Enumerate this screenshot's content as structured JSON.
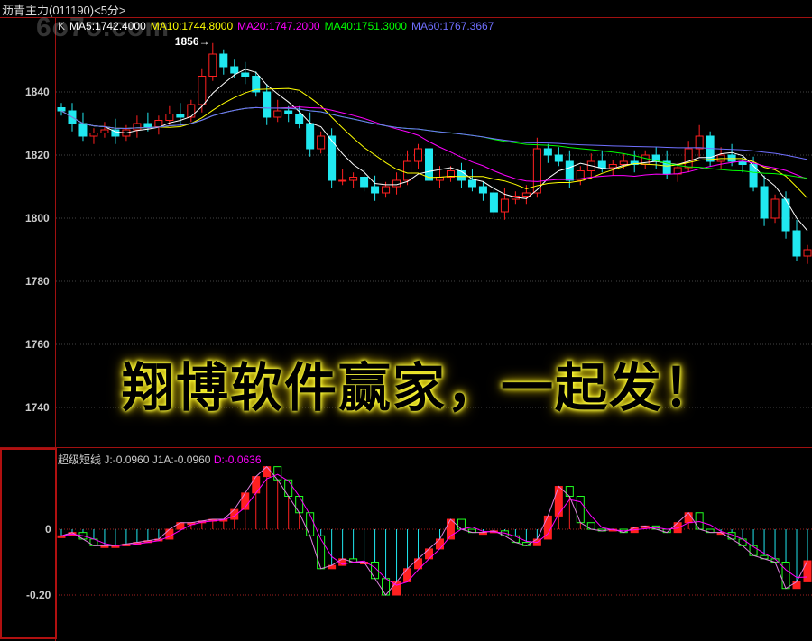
{
  "header": {
    "title": "沥青主力(011190)<5分>"
  },
  "logo_text": "6o7o.com",
  "legend": {
    "k": "K",
    "ma5": "MA5:1742.4000",
    "ma10": "MA10:1744.8000",
    "ma20": "MA20:1747.2000",
    "ma40": "MA40:1751.3000",
    "ma60": "MA60:1767.3667"
  },
  "high_marker": "1856→",
  "slogan": "翔博软件赢家，一起发！",
  "sub_legend": {
    "name": "超级短线",
    "j": "J:-0.0960",
    "j1a": "J1A:-0.0960",
    "d": "D:-0.0636"
  },
  "colors": {
    "up": "#ff2020",
    "down": "#20e8f0",
    "ma5": "#ffffff",
    "ma10": "#ffff00",
    "ma20": "#ff00ff",
    "ma40": "#00ff00",
    "ma60": "#7070ff",
    "grid": "#a02020"
  },
  "chart_data": [
    {
      "type": "candlestick",
      "title": "沥青主力(011190)<5分>",
      "ylim": [
        1730,
        1860
      ],
      "yticks": [
        "1840",
        "1820",
        "1800",
        "1780",
        "1760",
        "1740"
      ],
      "ytick_values": [
        1840,
        1820,
        1800,
        1780,
        1760,
        1740
      ],
      "close": [
        1834,
        1830,
        1826,
        1827,
        1828,
        1826,
        1828,
        1830,
        1829,
        1831,
        1833,
        1832,
        1836,
        1845,
        1852,
        1848,
        1846,
        1845,
        1840,
        1832,
        1834,
        1833,
        1830,
        1822,
        1826,
        1812,
        1812,
        1813,
        1810,
        1808,
        1810,
        1812,
        1818,
        1822,
        1812,
        1813,
        1815,
        1812,
        1810,
        1808,
        1802,
        1806,
        1807,
        1808,
        1822,
        1820,
        1818,
        1812,
        1815,
        1818,
        1816,
        1817,
        1818,
        1817,
        1820,
        1818,
        1814,
        1816,
        1822,
        1826,
        1818,
        1820,
        1818,
        1817,
        1810,
        1800,
        1806,
        1796,
        1788,
        1790
      ],
      "high_label": 1856
    },
    {
      "type": "indicator",
      "name": "超级短线",
      "ylim": [
        -0.33,
        0.2
      ],
      "yticks": [
        "0",
        "-0.20"
      ],
      "ytick_values": [
        0,
        -0.2
      ],
      "j": [
        -0.02,
        -0.01,
        -0.03,
        -0.05,
        -0.05,
        -0.05,
        -0.045,
        -0.04,
        -0.035,
        -0.03,
        0.0,
        0.02,
        0.02,
        0.025,
        0.03,
        0.03,
        0.06,
        0.11,
        0.16,
        0.19,
        0.15,
        0.1,
        0.05,
        -0.02,
        -0.12,
        -0.11,
        -0.09,
        -0.1,
        -0.1,
        -0.15,
        -0.2,
        -0.16,
        -0.12,
        -0.09,
        -0.06,
        -0.03,
        0.03,
        -0.0,
        -0.01,
        -0.01,
        -0.005,
        -0.02,
        -0.04,
        -0.05,
        -0.03,
        0.04,
        0.13,
        0.1,
        0.02,
        0.0,
        -0.005,
        0.0,
        -0.01,
        0.005,
        0.01,
        0.0,
        -0.01,
        0.02,
        0.05,
        0.0,
        -0.01,
        -0.01,
        -0.03,
        -0.05,
        -0.08,
        -0.09,
        -0.1,
        -0.18,
        -0.16,
        -0.096
      ]
    }
  ]
}
